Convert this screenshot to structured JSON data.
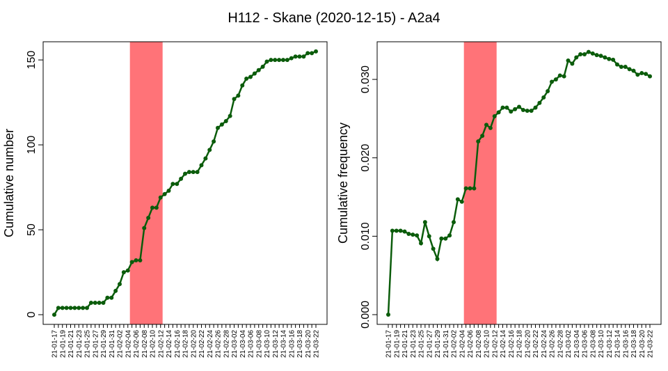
{
  "title": "H112 - Skane (2020-12-15) - A2a4",
  "chart_data": [
    {
      "type": "line",
      "ylabel": "Cumulative number",
      "categories": [
        "21-01-17",
        null,
        "21-01-19",
        null,
        "21-01-21",
        null,
        "21-01-23",
        null,
        "21-01-25",
        null,
        "21-01-27",
        null,
        "21-01-29",
        null,
        "21-01-31",
        null,
        "21-02-02",
        null,
        "21-02-04",
        null,
        "21-02-06",
        null,
        "21-02-08",
        null,
        "21-02-10",
        null,
        "21-02-12",
        null,
        "21-02-14",
        null,
        "21-02-16",
        null,
        "21-02-18",
        null,
        "21-02-20",
        null,
        "21-02-22",
        null,
        "21-02-24",
        null,
        "21-02-26",
        null,
        "21-02-28",
        null,
        "21-03-02",
        null,
        "21-03-04",
        null,
        "21-03-06",
        null,
        "21-03-08",
        null,
        "21-03-10",
        null,
        "21-03-12",
        null,
        "21-03-14",
        null,
        "21-03-16",
        null,
        "21-03-18",
        null,
        "21-03-20",
        null,
        "21-03-22"
      ],
      "values": [
        0,
        4,
        4,
        4,
        4,
        4,
        4,
        4,
        4,
        7,
        7,
        7,
        7,
        10,
        10,
        14,
        18,
        25,
        26,
        31,
        32,
        32,
        51,
        57,
        63,
        63,
        69,
        71,
        73,
        77,
        77,
        80,
        83,
        84,
        84,
        84,
        88,
        92,
        97,
        102,
        110,
        112,
        114,
        117,
        127,
        129,
        135,
        139,
        140,
        142,
        144,
        146,
        149,
        150,
        150,
        150,
        150,
        150,
        151,
        152,
        152,
        152,
        154,
        154,
        155
      ],
      "color": "#0b5c0b",
      "highlight": {
        "from": 18.5,
        "to": 26.5,
        "color": "#ff7378"
      },
      "ylim": [
        -5.7,
        160.7
      ],
      "yticks": [
        0,
        50,
        100,
        150
      ]
    },
    {
      "type": "line",
      "ylabel": "Cumulative frequency",
      "categories": [
        "21-01-17",
        null,
        "21-01-19",
        null,
        "21-01-21",
        null,
        "21-01-23",
        null,
        "21-01-25",
        null,
        "21-01-27",
        null,
        "21-01-29",
        null,
        "21-01-31",
        null,
        "21-02-02",
        null,
        "21-02-04",
        null,
        "21-02-06",
        null,
        "21-02-08",
        null,
        "21-02-10",
        null,
        "21-02-12",
        null,
        "21-02-14",
        null,
        "21-02-16",
        null,
        "21-02-18",
        null,
        "21-02-20",
        null,
        "21-02-22",
        null,
        "21-02-24",
        null,
        "21-02-26",
        null,
        "21-02-28",
        null,
        "21-03-02",
        null,
        "21-03-04",
        null,
        "21-03-06",
        null,
        "21-03-08",
        null,
        "21-03-10",
        null,
        "21-03-12",
        null,
        "21-03-14",
        null,
        "21-03-16",
        null,
        "21-03-18",
        null,
        "21-03-20",
        null,
        "21-03-22"
      ],
      "values": [
        0,
        0.0107,
        0.0107,
        0.0107,
        0.0106,
        0.0103,
        0.0102,
        0.0101,
        0.0091,
        0.0118,
        0.01,
        0.0084,
        0.0071,
        0.0097,
        0.0097,
        0.0101,
        0.0118,
        0.0147,
        0.0144,
        0.0161,
        0.0161,
        0.0161,
        0.0221,
        0.0228,
        0.0242,
        0.0238,
        0.0253,
        0.0258,
        0.0264,
        0.0264,
        0.0259,
        0.0262,
        0.0265,
        0.0261,
        0.026,
        0.026,
        0.0264,
        0.027,
        0.0277,
        0.0285,
        0.0297,
        0.03,
        0.0305,
        0.0304,
        0.0324,
        0.032,
        0.0328,
        0.0332,
        0.0332,
        0.0335,
        0.0333,
        0.0331,
        0.033,
        0.0328,
        0.0326,
        0.0325,
        0.0319,
        0.0316,
        0.0316,
        0.0313,
        0.0311,
        0.0306,
        0.0308,
        0.0307,
        0.0304
      ],
      "color": "#0b5c0b",
      "highlight": {
        "from": 18.5,
        "to": 26.5,
        "color": "#ff7378"
      },
      "ylim": [
        -0.00124,
        0.0348
      ],
      "yticks": [
        {
          "value": 0,
          "label": "0.000"
        },
        {
          "value": 0.01,
          "label": "0.010"
        },
        {
          "value": 0.02,
          "label": "0.020"
        },
        {
          "value": 0.03,
          "label": "0.030"
        }
      ]
    }
  ]
}
